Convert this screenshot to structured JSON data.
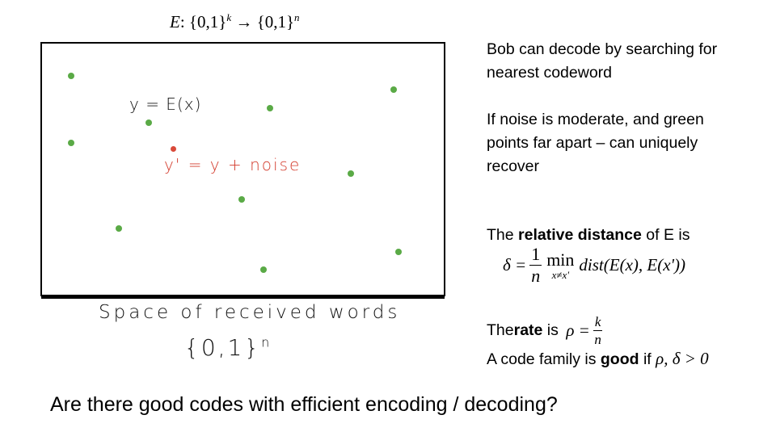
{
  "header": {
    "equation": "E: {0,1}^k → {0,1}^n",
    "lhs": "E",
    "set_left": ": {0,1}",
    "exp_k": "k",
    "arrow": " → {0,1}",
    "exp_n": "n"
  },
  "diagram": {
    "codeword_label": "y = E(x)",
    "noise_label": "y' = y + noise",
    "space_caption": "Space of received words",
    "space_set": "{0,1}",
    "space_set_exp": "n",
    "green_point_color": "#5aaa46",
    "received_point_color": "#d94a3a",
    "label_color": "#d33b2c"
  },
  "notes": {
    "decode_line1": "Bob can decode by searching for",
    "decode_line2": "nearest codeword",
    "noise_line1": "If noise is moderate, and green",
    "noise_line2": "points far apart – can uniquely",
    "noise_line3": "recover",
    "reldist_pre": "The ",
    "reldist_bold": "relative distance",
    "reldist_post": " of E is",
    "formula_lhs": "δ =",
    "formula_num": "1",
    "formula_den": "n",
    "formula_min": "min",
    "formula_sub": "x≠x'",
    "formula_rhs": "dist(E(x), E(x'))",
    "rate_pre": "The ",
    "rate_bold": "rate",
    "rate_mid": " is ",
    "rate_rho": "ρ =",
    "rate_num": "k",
    "rate_den": "n",
    "good_pre": "A code family is ",
    "good_bold": "good",
    "good_mid": " if ",
    "good_math": "ρ, δ > 0"
  },
  "question": "Are there good codes with efficient encoding / decoding?"
}
